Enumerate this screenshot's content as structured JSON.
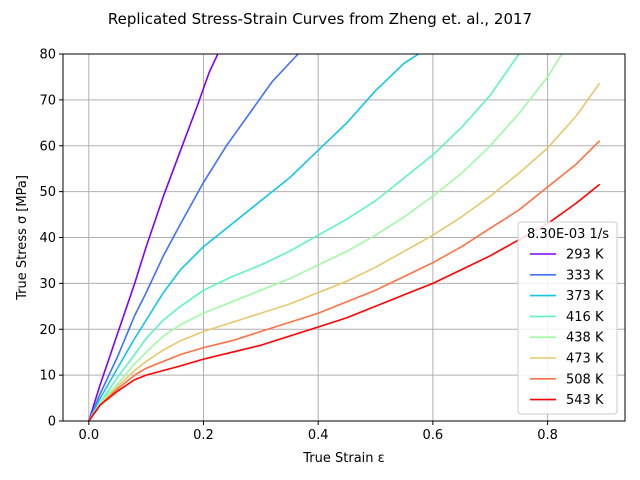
{
  "chart_data": {
    "type": "line",
    "title": "Replicated Stress-Strain Curves from Zheng et. al., 2017",
    "xlabel": "True Strain ε",
    "ylabel": "True Stress σ [MPa]",
    "xlim": [
      -0.045,
      0.935
    ],
    "ylim": [
      0,
      80
    ],
    "x_ticks": [
      0.0,
      0.2,
      0.4,
      0.6,
      0.8
    ],
    "x_tick_labels": [
      "0.0",
      "0.2",
      "0.4",
      "0.6",
      "0.8"
    ],
    "y_ticks": [
      0,
      10,
      20,
      30,
      40,
      50,
      60,
      70,
      80
    ],
    "y_tick_labels": [
      "0",
      "10",
      "20",
      "30",
      "40",
      "50",
      "60",
      "70",
      "80"
    ],
    "grid": true,
    "legend": {
      "title": "8.30E-03 1/s",
      "placement": "center-right"
    },
    "series": [
      {
        "name": "293 K",
        "color": "#8000ff",
        "x": [
          0,
          0.02,
          0.05,
          0.08,
          0.1,
          0.13,
          0.16,
          0.19,
          0.21,
          0.225
        ],
        "y": [
          0,
          8,
          19,
          30,
          38,
          49,
          59,
          69,
          76,
          80
        ]
      },
      {
        "name": "333 K",
        "color": "#3f70ff",
        "x": [
          0,
          0.02,
          0.05,
          0.08,
          0.1,
          0.13,
          0.16,
          0.2,
          0.24,
          0.28,
          0.32,
          0.365
        ],
        "y": [
          0,
          6,
          14,
          23,
          28,
          36,
          43,
          52,
          60,
          67,
          74,
          80
        ]
      },
      {
        "name": "373 K",
        "color": "#13c5e8",
        "x": [
          0,
          0.02,
          0.05,
          0.08,
          0.1,
          0.13,
          0.16,
          0.2,
          0.25,
          0.3,
          0.35,
          0.4,
          0.45,
          0.5,
          0.55,
          0.575
        ],
        "y": [
          0,
          5,
          11.5,
          18,
          22,
          28,
          33,
          38,
          43,
          48,
          53,
          59,
          65,
          72,
          78,
          80
        ]
      },
      {
        "name": "416 K",
        "color": "#5ef4c1",
        "x": [
          0,
          0.02,
          0.05,
          0.08,
          0.1,
          0.13,
          0.16,
          0.2,
          0.25,
          0.3,
          0.35,
          0.4,
          0.45,
          0.5,
          0.55,
          0.6,
          0.65,
          0.7,
          0.75
        ],
        "y": [
          0,
          4,
          9.5,
          14.5,
          18,
          22,
          25,
          28.5,
          31.5,
          34,
          37,
          40.5,
          44,
          48,
          53,
          58,
          64,
          71,
          80
        ]
      },
      {
        "name": "438 K",
        "color": "#a0faa4",
        "x": [
          0,
          0.02,
          0.05,
          0.08,
          0.1,
          0.13,
          0.16,
          0.2,
          0.25,
          0.3,
          0.35,
          0.4,
          0.45,
          0.5,
          0.55,
          0.6,
          0.65,
          0.7,
          0.75,
          0.8,
          0.825
        ],
        "y": [
          0,
          4,
          8,
          12.5,
          15,
          18.5,
          21,
          23.5,
          26,
          28.5,
          31,
          34,
          37,
          40.5,
          44.5,
          49,
          54,
          60,
          67,
          75,
          80
        ]
      },
      {
        "name": "473 K",
        "color": "#e8c76a",
        "x": [
          0,
          0.02,
          0.05,
          0.08,
          0.1,
          0.13,
          0.16,
          0.2,
          0.25,
          0.3,
          0.35,
          0.4,
          0.45,
          0.5,
          0.55,
          0.6,
          0.65,
          0.7,
          0.75,
          0.8,
          0.85,
          0.89
        ],
        "y": [
          0,
          3.5,
          7.5,
          11,
          13,
          15.5,
          17.5,
          19.5,
          21.5,
          23.5,
          25.5,
          28,
          30.5,
          33.5,
          37,
          40.5,
          44.5,
          49,
          54,
          59.5,
          66.5,
          73.5
        ]
      },
      {
        "name": "508 K",
        "color": "#ff7043",
        "x": [
          0,
          0.02,
          0.05,
          0.08,
          0.1,
          0.13,
          0.16,
          0.2,
          0.25,
          0.3,
          0.35,
          0.4,
          0.45,
          0.5,
          0.55,
          0.6,
          0.65,
          0.7,
          0.75,
          0.8,
          0.85,
          0.89
        ],
        "y": [
          0,
          3.5,
          7,
          10,
          11.5,
          13,
          14.5,
          16,
          17.5,
          19.5,
          21.5,
          23.5,
          26,
          28.5,
          31.5,
          34.5,
          38,
          42,
          46,
          51,
          56,
          61
        ]
      },
      {
        "name": "543 K",
        "color": "#ff0000",
        "x": [
          0,
          0.02,
          0.05,
          0.08,
          0.1,
          0.13,
          0.16,
          0.2,
          0.25,
          0.3,
          0.35,
          0.4,
          0.45,
          0.5,
          0.55,
          0.6,
          0.65,
          0.7,
          0.75,
          0.8,
          0.85,
          0.89
        ],
        "y": [
          0,
          3.5,
          6.5,
          9,
          10,
          11,
          12,
          13.5,
          15,
          16.5,
          18.5,
          20.5,
          22.5,
          25,
          27.5,
          30,
          33,
          36,
          39.5,
          43,
          47.5,
          51.5
        ]
      }
    ]
  }
}
